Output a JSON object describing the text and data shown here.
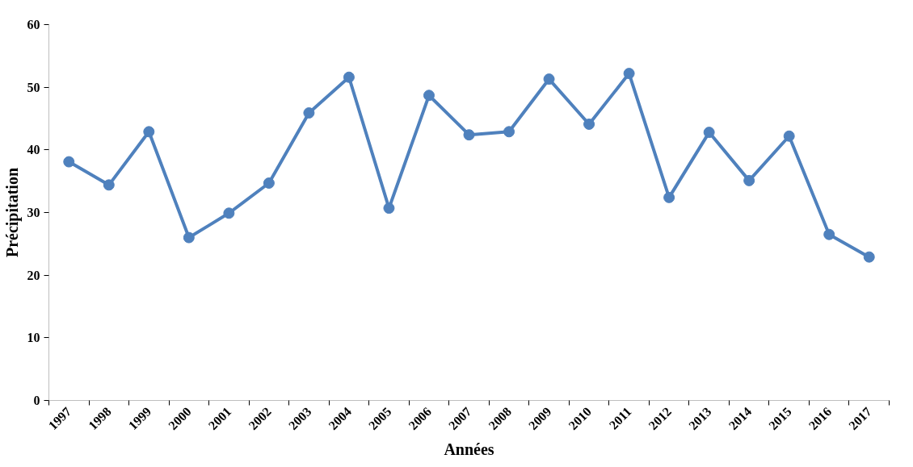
{
  "chart_data": {
    "type": "line",
    "xlabel": "Années",
    "ylabel": "Précipitation",
    "categories": [
      "1997",
      "1998",
      "1999",
      "2000",
      "2001",
      "2002",
      "2003",
      "2004",
      "2005",
      "2006",
      "2007",
      "2008",
      "2009",
      "2010",
      "2011",
      "2012",
      "2013",
      "2014",
      "2015",
      "2016",
      "2017"
    ],
    "series": [
      {
        "color": "#4f81bd",
        "values": [
          38.1,
          34.4,
          42.9,
          26.0,
          29.9,
          34.7,
          45.9,
          51.6,
          30.7,
          48.7,
          42.4,
          42.9,
          51.3,
          44.1,
          52.2,
          32.4,
          42.8,
          35.1,
          42.2,
          26.5,
          22.9
        ]
      }
    ],
    "ylim": [
      0,
      60
    ],
    "yticks": [
      0,
      10,
      20,
      30,
      40,
      50,
      60
    ],
    "grid": false,
    "marker": "circle",
    "line_style": "solid"
  }
}
